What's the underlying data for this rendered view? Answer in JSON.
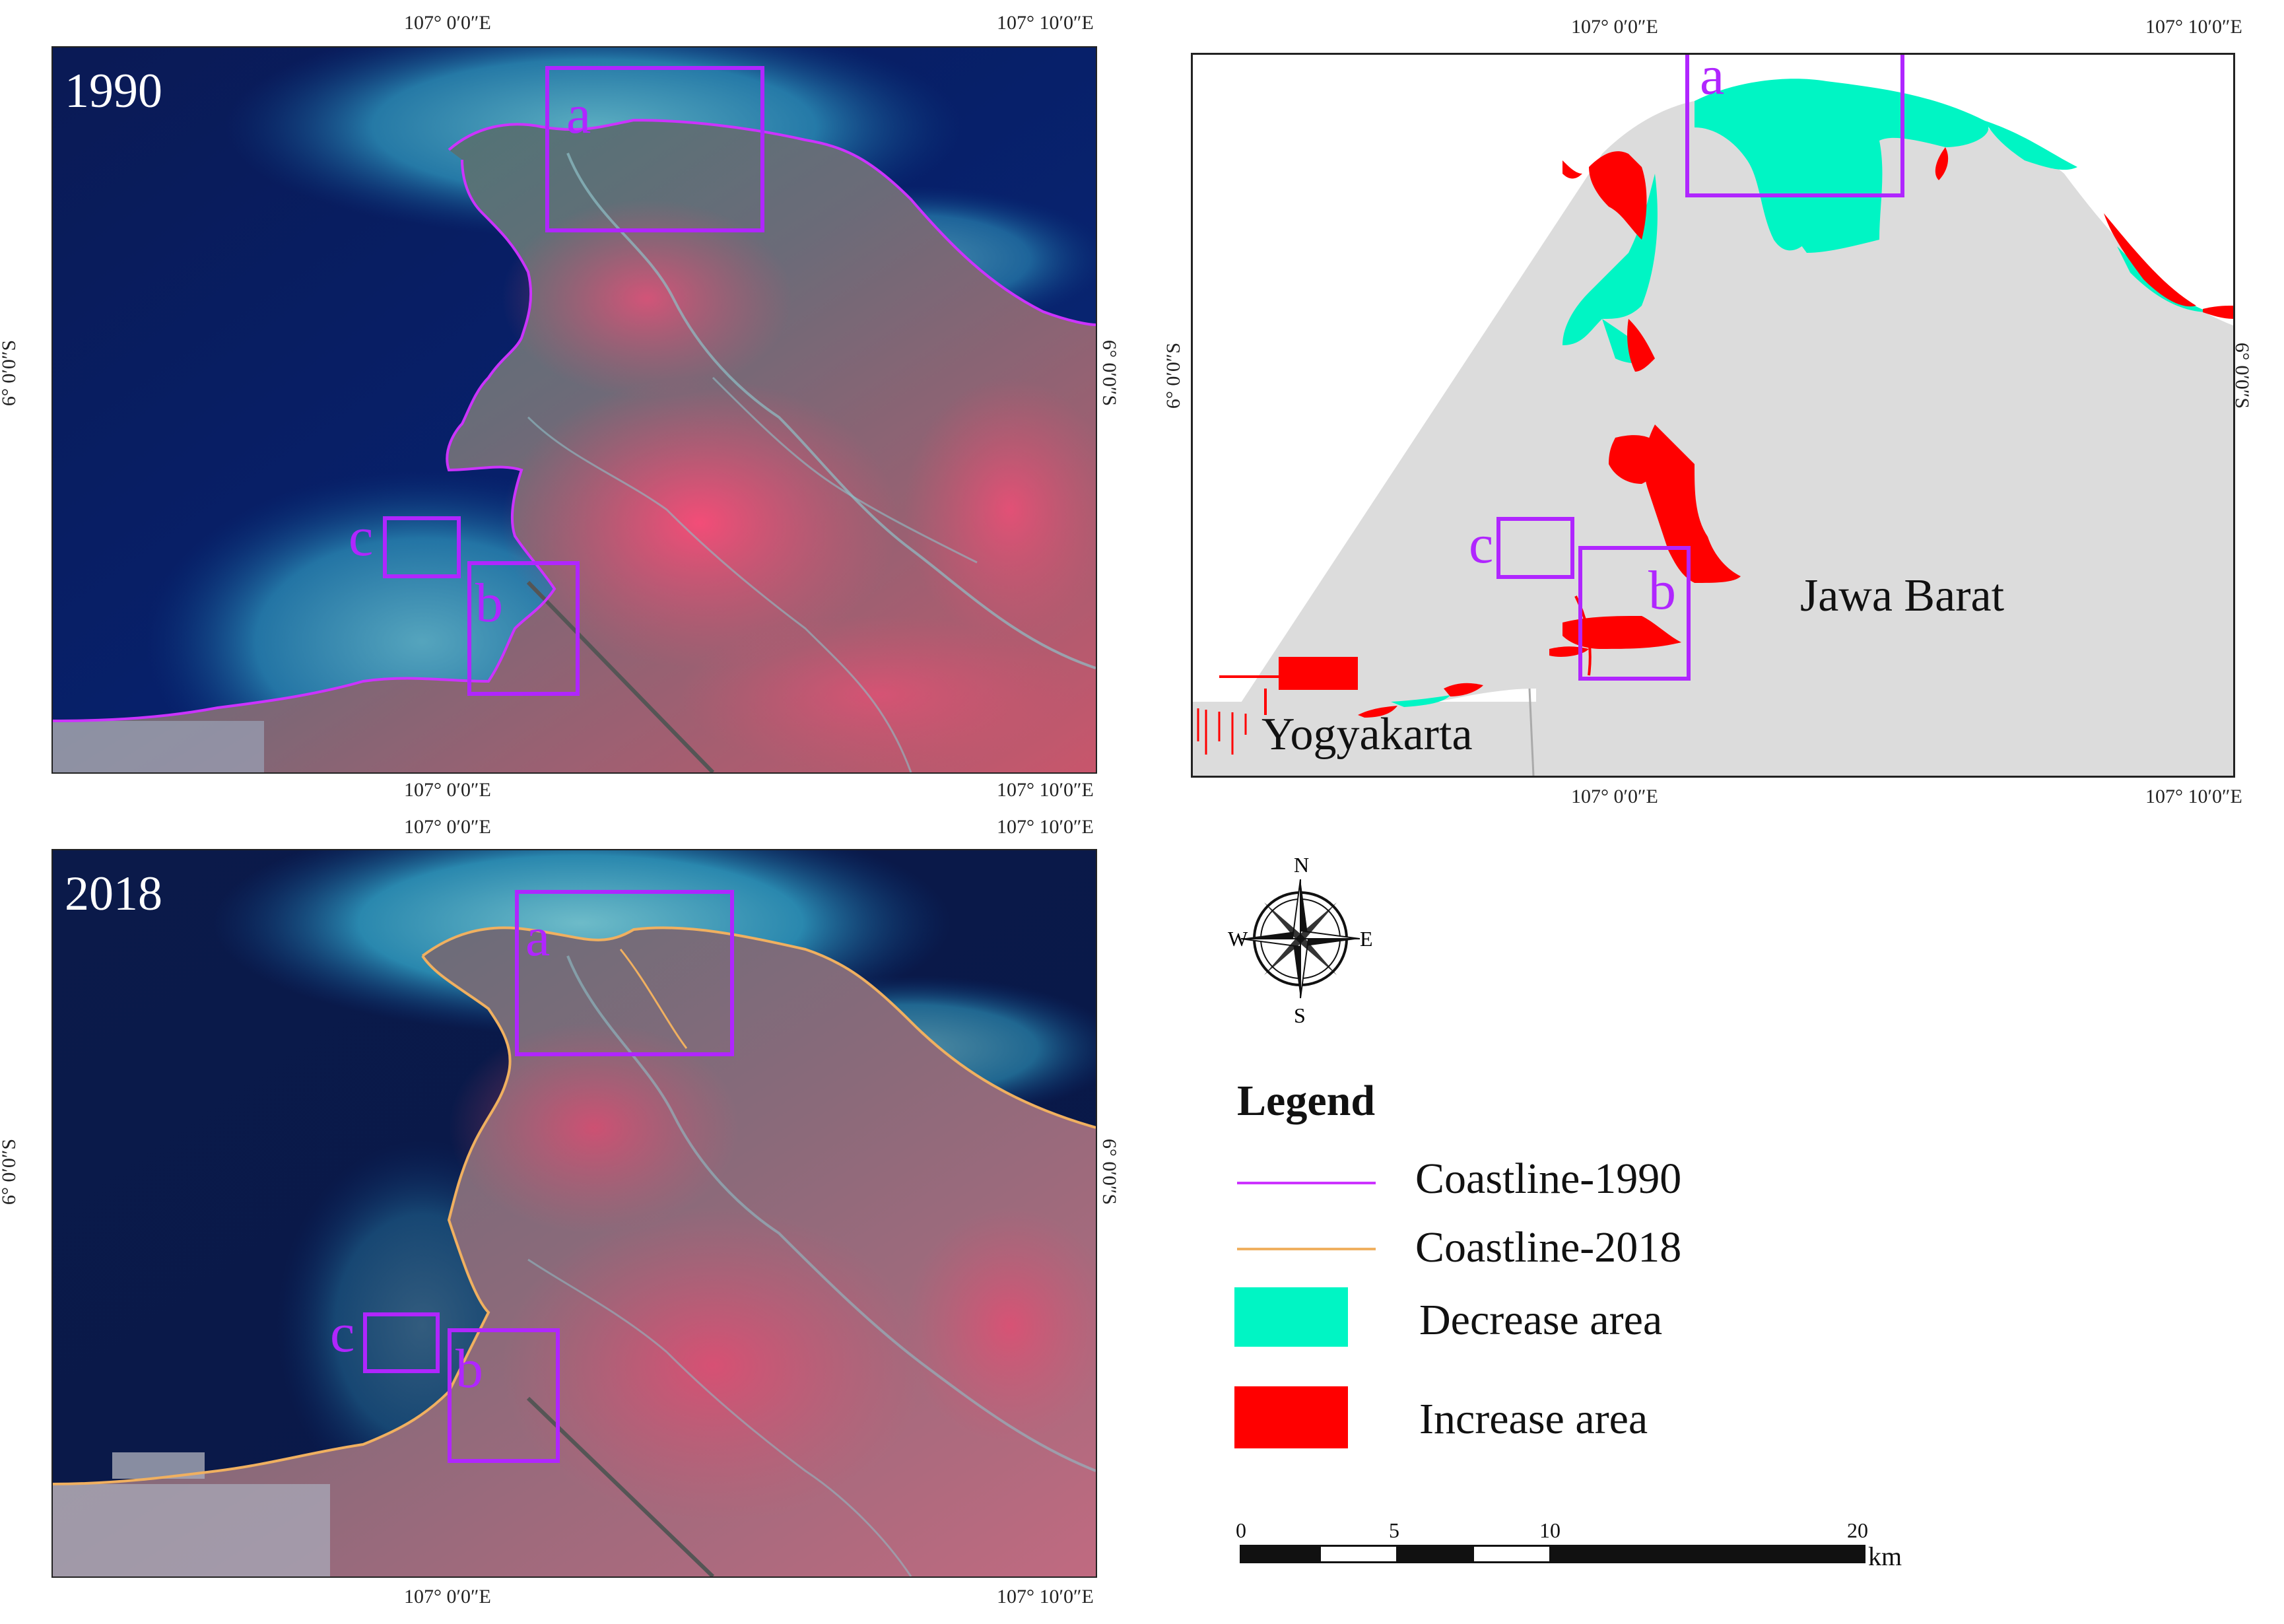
{
  "panels": {
    "p1990": {
      "year": "1990",
      "top_ticks": [
        "107° 0′0″E",
        "107° 10′0″E"
      ],
      "bottom_ticks": [
        "107° 0′0″E",
        "107° 10′0″E"
      ],
      "side_tick": "6° 0′0″S",
      "boxes": [
        "a",
        "b",
        "c"
      ]
    },
    "p2018": {
      "year": "2018",
      "top_ticks": [
        "107° 0′0″E",
        "107° 10′0″E"
      ],
      "bottom_ticks": [
        "107° 0′0″E",
        "107° 10′0″E"
      ],
      "side_tick": "6° 0′0″S",
      "boxes": [
        "a",
        "b",
        "c"
      ]
    },
    "change": {
      "top_ticks": [
        "107° 0′0″E",
        "107° 10′0″E"
      ],
      "bottom_ticks": [
        "107° 0′0″E",
        "107° 10′0″E"
      ],
      "side_tick": "6° 0′0″S",
      "boxes": [
        "a",
        "b",
        "c"
      ],
      "regions": [
        "Jawa Barat",
        "Yogyakarta"
      ]
    }
  },
  "compass": {
    "n": "N",
    "s": "S",
    "e": "E",
    "w": "W"
  },
  "legend": {
    "title": "Legend",
    "items": [
      {
        "label": "Coastline-1990",
        "color": "#cc33ff",
        "kind": "line"
      },
      {
        "label": "Coastline-2018",
        "color": "#f0b060",
        "kind": "line"
      },
      {
        "label": "Decrease area",
        "color": "#00f5c4",
        "kind": "patch"
      },
      {
        "label": "Increase area",
        "color": "#ff0000",
        "kind": "patch"
      }
    ]
  },
  "scalebar": {
    "ticks": [
      "0",
      "5",
      "10",
      "20"
    ],
    "unit": "km"
  },
  "colors": {
    "box": "#b026ff",
    "land_gray": "#dcdcdc",
    "decrease": "#00f5c4",
    "increase": "#ff0000"
  }
}
